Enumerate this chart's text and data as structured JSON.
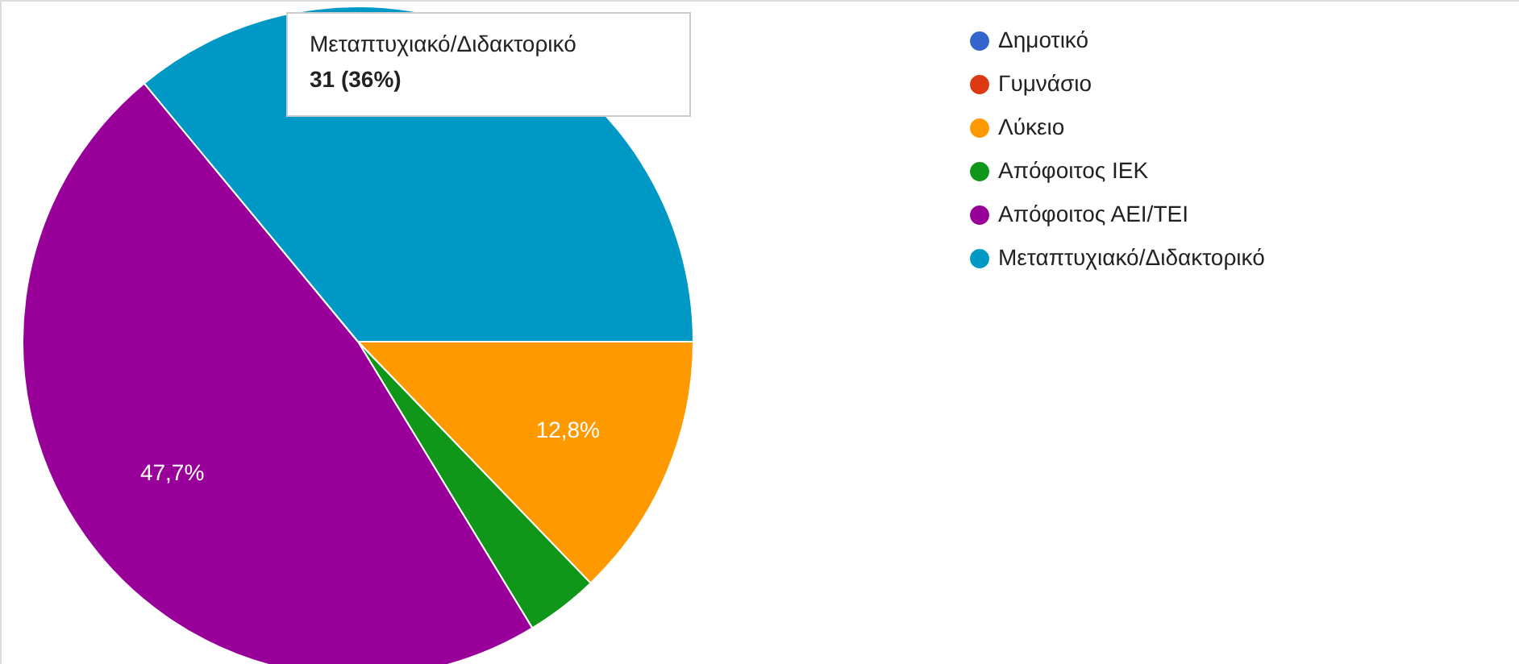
{
  "chart_data": {
    "type": "pie",
    "categories": [
      "Δημοτικό",
      "Γυμνάσιο",
      "Λύκειο",
      "Απόφοιτος ΙΕΚ",
      "Απόφοιτος ΑΕΙ/ΤΕΙ",
      "Μεταπτυχιακό/Διδακτορικό"
    ],
    "values": [
      0,
      0,
      12.8,
      3.5,
      47.7,
      36.0
    ],
    "colors": [
      "#3366cc",
      "#dc3912",
      "#ff9900",
      "#109618",
      "#990099",
      "#0099c6"
    ],
    "value_labels": [
      null,
      null,
      "12,8%",
      null,
      "47,7%",
      null
    ],
    "annotations": [
      "Μεταπτυχιακό/Διδακτορικό",
      "31 (36%)"
    ],
    "legend": "right"
  }
}
